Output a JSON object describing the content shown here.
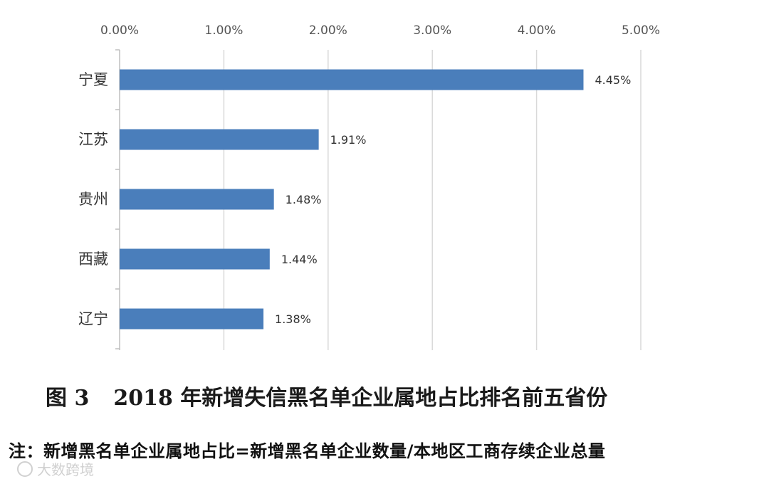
{
  "chart_data": {
    "type": "bar",
    "orientation": "horizontal",
    "categories": [
      "宁夏",
      "江苏",
      "贵州",
      "西藏",
      "辽宁"
    ],
    "values": [
      4.45,
      1.91,
      1.48,
      1.44,
      1.38
    ],
    "value_labels": [
      "4.45%",
      "1.91%",
      "1.48%",
      "1.44%",
      "1.38%"
    ],
    "xlim": [
      0,
      5
    ],
    "x_ticks": [
      0,
      1,
      2,
      3,
      4,
      5
    ],
    "x_tick_labels": [
      "0.00%",
      "1.00%",
      "2.00%",
      "3.00%",
      "4.00%",
      "5.00%"
    ],
    "x_axis_position": "top",
    "grid": true,
    "bar_color": "#4a7ebb",
    "grid_color": "#d9d9d9"
  },
  "caption": {
    "figure_number": "图 3",
    "text": "2018 年新增失信黑名单企业属地占比排名前五省份"
  },
  "note": "注：新增黑名单企业属地占比=新增黑名单企业数量/本地区工商存续企业总量",
  "watermark": "大数跨境"
}
